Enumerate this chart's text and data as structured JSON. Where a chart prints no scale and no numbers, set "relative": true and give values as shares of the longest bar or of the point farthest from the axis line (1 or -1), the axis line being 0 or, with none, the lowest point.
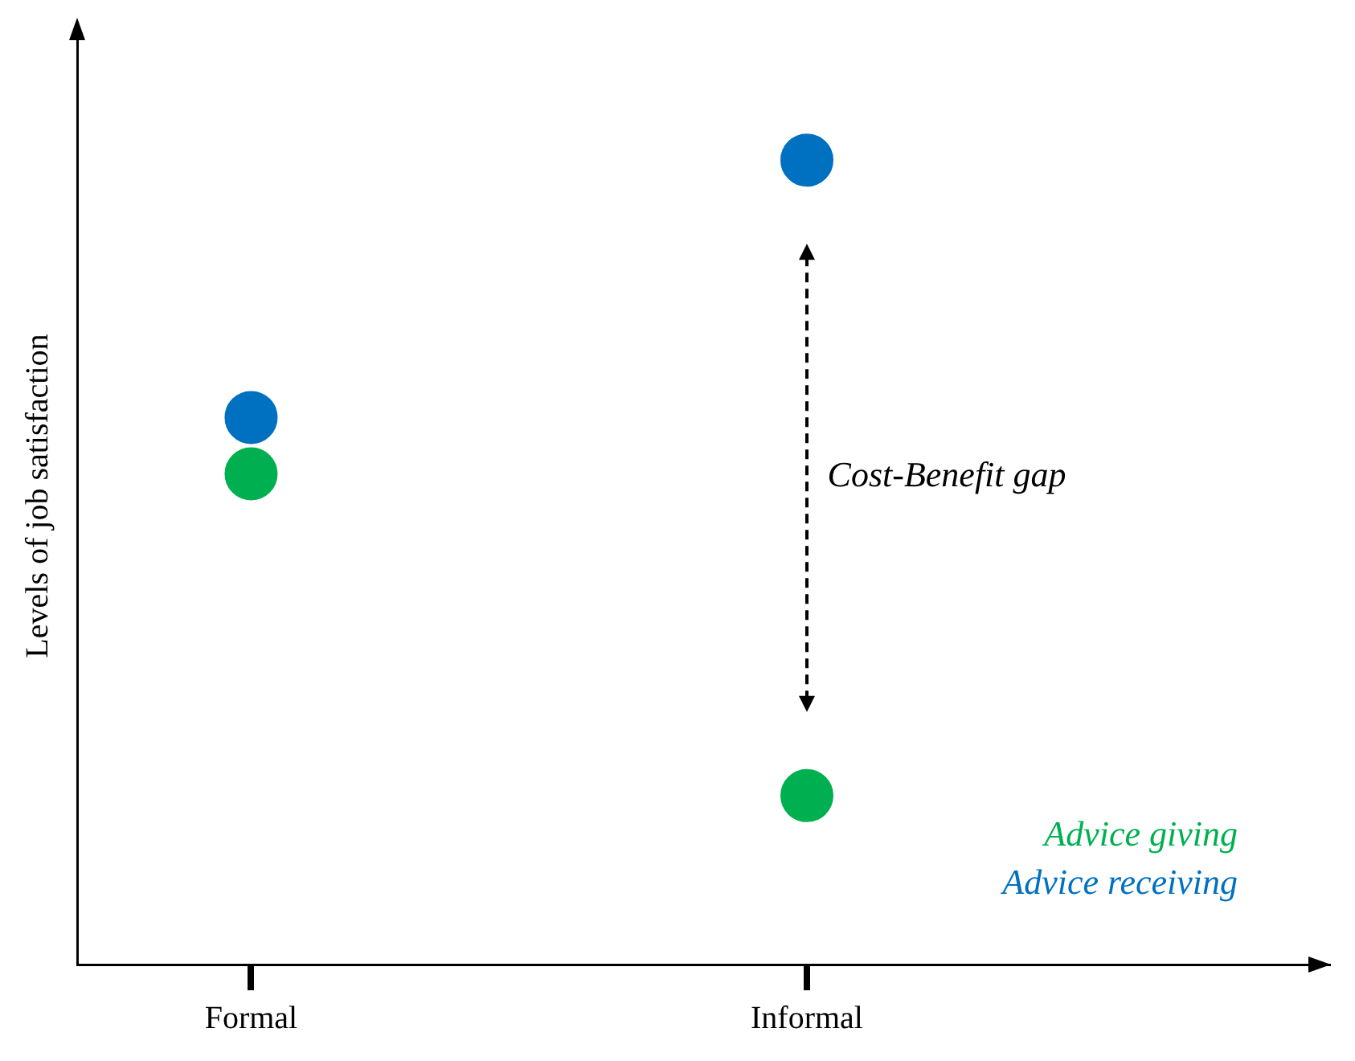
{
  "chart_data": {
    "type": "scatter",
    "relative": true,
    "ylabel": "Levels of job satisfaction",
    "categories": [
      "Formal",
      "Informal"
    ],
    "series": [
      {
        "name": "Advice giving",
        "color": "#00b050",
        "values": [
          0.61,
          0.21
        ]
      },
      {
        "name": "Advice receiving",
        "color": "#0070c0",
        "values": [
          0.68,
          1
        ]
      }
    ],
    "annotations": [
      "Cost-Benefit gap"
    ],
    "legend": "bottom right",
    "marker": "circle"
  }
}
